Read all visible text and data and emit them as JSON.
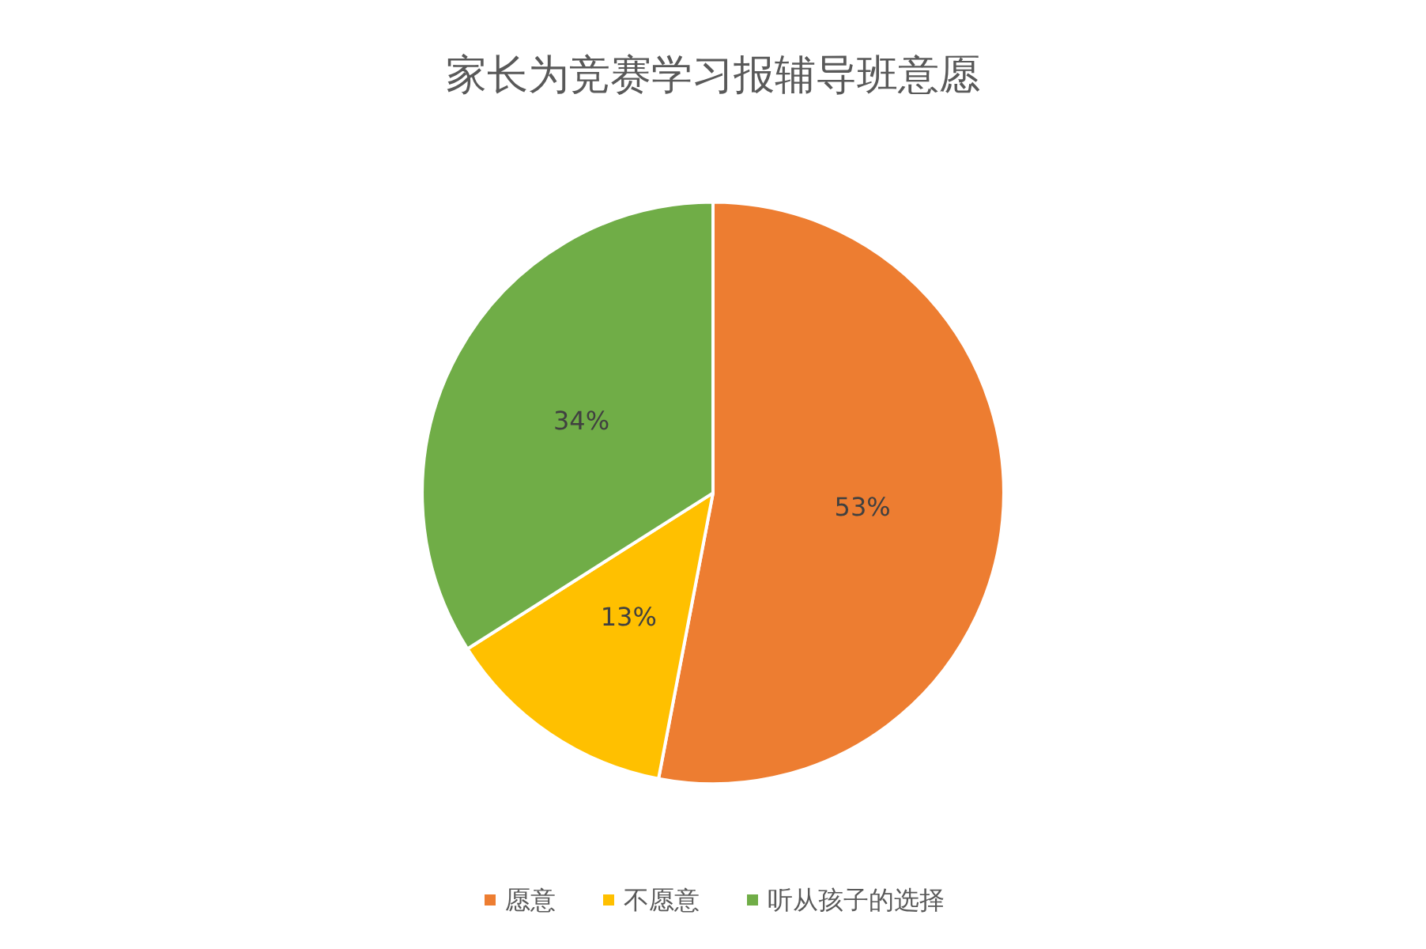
{
  "chart_data": {
    "type": "pie",
    "title": "家长为竞赛学习报辅导班意愿",
    "categories": [
      "愿意",
      "不愿意",
      "听从孩子的选择"
    ],
    "values": [
      53,
      13,
      34
    ],
    "value_labels": [
      "53%",
      "13%",
      "34%"
    ],
    "colors": [
      "#ed7d31",
      "#ffc000",
      "#70ad47"
    ],
    "legend": "bottom"
  }
}
